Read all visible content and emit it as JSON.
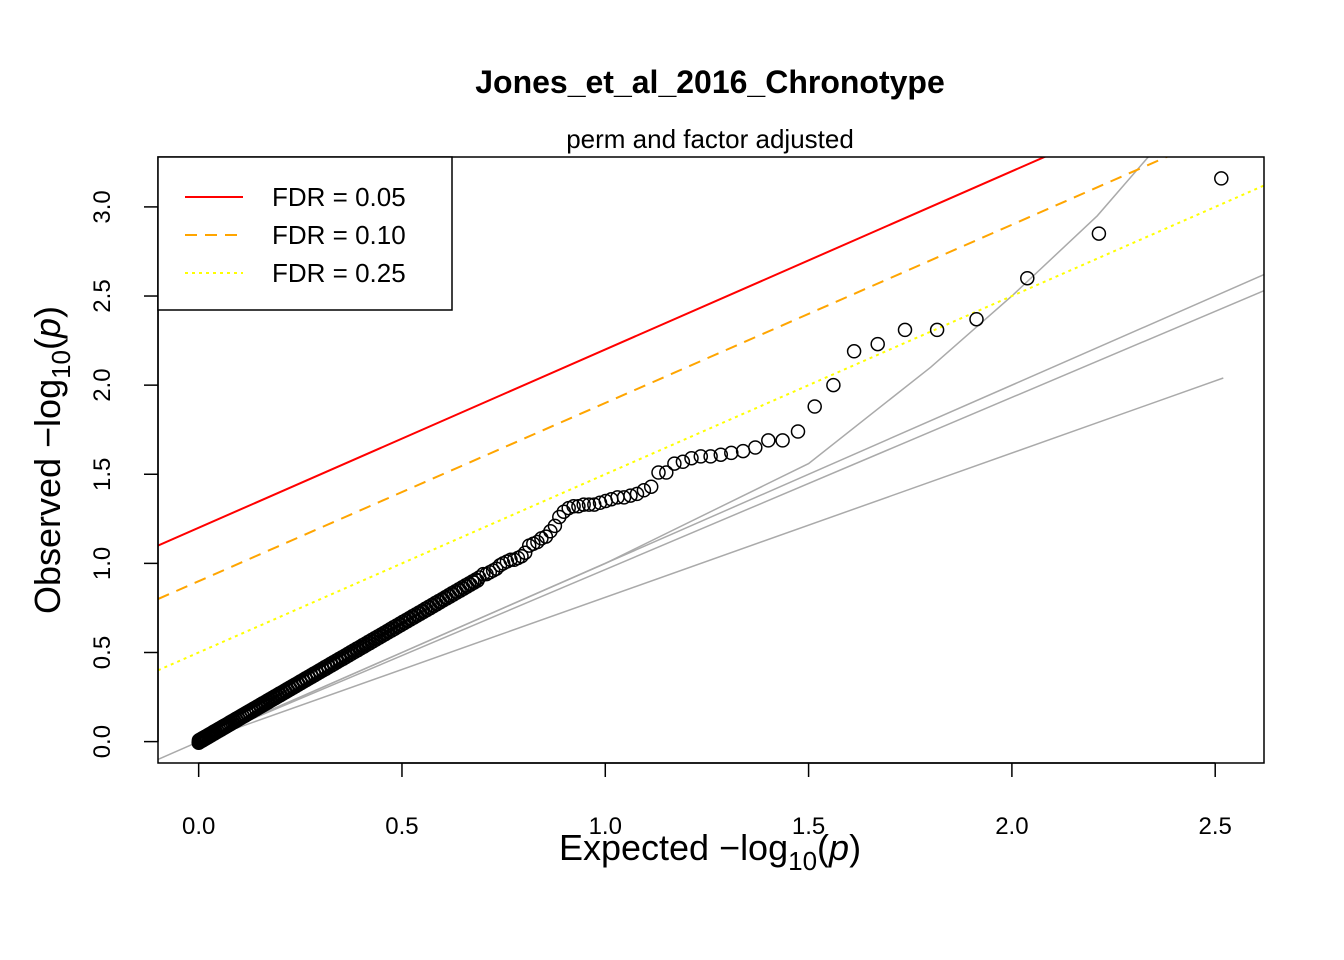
{
  "chart_data": {
    "type": "scatter",
    "title": "Jones_et_al_2016_Chronotype",
    "subtitle": "perm and factor adjusted",
    "xlabel": {
      "prefix": "Expected  −log",
      "sub": "10",
      "arg": "p"
    },
    "ylabel": {
      "prefix": "Observed  −log",
      "sub": "10",
      "arg": "p"
    },
    "xlim": [
      -0.1,
      2.62
    ],
    "ylim": [
      -0.12,
      3.28
    ],
    "x_ticks": [
      "0.0",
      "0.5",
      "1.0",
      "1.5",
      "2.0",
      "2.5"
    ],
    "y_ticks": [
      "0.0",
      "0.5",
      "1.0",
      "1.5",
      "2.0",
      "2.5",
      "3.0"
    ],
    "grid": false,
    "legend": {
      "position": "top-left",
      "entries": [
        {
          "label": "FDR = 0.05",
          "color": "#ff0000",
          "dash": "solid"
        },
        {
          "label": "FDR = 0.10",
          "color": "#ffa500",
          "dash": "dashed"
        },
        {
          "label": "FDR = 0.25",
          "color": "#ffff00",
          "dash": "dotted"
        }
      ]
    },
    "fdr_lines": [
      {
        "name": "FDR = 0.05",
        "intercept": 1.2,
        "slope": 1.0,
        "color": "#ff0000",
        "dash": "solid"
      },
      {
        "name": "FDR = 0.10",
        "intercept": 0.9,
        "slope": 1.0,
        "color": "#ffa500",
        "dash": "dashed"
      },
      {
        "name": "FDR = 0.25",
        "intercept": 0.5,
        "slope": 1.0,
        "color": "#ffff00",
        "dash": "dotted"
      }
    ],
    "reference_lines": [
      {
        "x": [
          -0.1,
          2.62
        ],
        "y": [
          -0.1,
          2.62
        ],
        "color": "#aaaaaa"
      },
      {
        "x": [
          0.0,
          2.62
        ],
        "y": [
          0.0,
          2.53
        ],
        "color": "#aaaaaa"
      },
      {
        "x": [
          0.0,
          2.52
        ],
        "y": [
          0.0,
          2.04
        ],
        "color": "#aaaaaa"
      },
      {
        "x": [
          0.0,
          0.5,
          1.0,
          1.5,
          1.8,
          2.0,
          2.21,
          2.4
        ],
        "y": [
          0.0,
          0.5,
          1.0,
          1.56,
          2.1,
          2.5,
          2.95,
          3.45
        ],
        "color": "#aaaaaa"
      }
    ],
    "points": {
      "x": [
        2.515,
        2.214,
        2.038,
        1.913,
        1.816,
        1.737,
        1.67,
        1.612,
        1.561,
        1.515,
        1.474,
        1.436,
        1.401,
        1.369,
        1.339,
        1.31,
        1.284,
        1.259,
        1.235,
        1.212,
        1.191,
        1.17,
        1.15,
        1.131,
        1.113,
        1.095,
        1.078,
        1.062,
        1.046,
        1.03,
        1.015,
        1.001,
        0.987,
        0.973,
        0.96,
        0.947,
        0.934,
        0.922,
        0.91,
        0.898,
        0.887,
        0.876,
        0.865,
        0.854,
        0.843,
        0.833,
        0.823,
        0.813,
        0.803,
        0.794,
        0.785,
        0.776,
        0.767,
        0.758,
        0.749,
        0.741,
        0.732,
        0.724,
        0.716,
        0.708,
        0.7
      ],
      "y": [
        3.16,
        2.85,
        2.6,
        2.37,
        2.31,
        2.31,
        2.23,
        2.19,
        2.0,
        1.88,
        1.74,
        1.69,
        1.69,
        1.65,
        1.63,
        1.62,
        1.61,
        1.6,
        1.6,
        1.59,
        1.57,
        1.56,
        1.51,
        1.51,
        1.43,
        1.41,
        1.39,
        1.38,
        1.37,
        1.37,
        1.36,
        1.35,
        1.34,
        1.33,
        1.33,
        1.33,
        1.32,
        1.32,
        1.31,
        1.29,
        1.26,
        1.21,
        1.18,
        1.15,
        1.14,
        1.12,
        1.11,
        1.1,
        1.06,
        1.04,
        1.03,
        1.02,
        1.02,
        1.01,
        1.0,
        0.99,
        0.97,
        0.96,
        0.95,
        0.94,
        0.94
      ],
      "dense_segment": {
        "x_start": 0.0,
        "x_end": 0.69,
        "y_start": 0.0,
        "y_end": 0.915,
        "count": 220
      }
    }
  }
}
